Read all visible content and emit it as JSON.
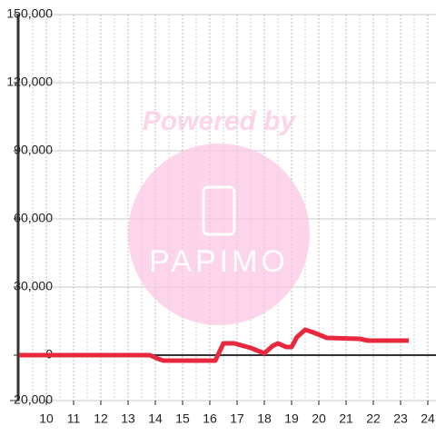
{
  "chart_data": {
    "type": "line",
    "x": [
      9.0,
      13.8,
      14.1,
      14.3,
      16.2,
      16.5,
      16.9,
      17.5,
      18.0,
      18.3,
      18.5,
      18.8,
      19.0,
      19.2,
      19.5,
      19.8,
      20.3,
      21.5,
      21.8,
      23.3
    ],
    "series": [
      {
        "color": "#e8283c",
        "values": [
          0,
          0,
          -1600,
          -2400,
          -2400,
          5200,
          5200,
          3200,
          800,
          4000,
          5200,
          3600,
          3600,
          8000,
          11200,
          10000,
          7600,
          7200,
          6400,
          6400
        ]
      }
    ],
    "xlim": [
      9,
      24.3
    ],
    "xticks": [
      10,
      11,
      12,
      13,
      14,
      15,
      16,
      17,
      18,
      19,
      20,
      21,
      22,
      23,
      24
    ],
    "ylim": [
      -20000,
      150000
    ],
    "yticks": [
      {
        "value": -20000,
        "label": "-20,000"
      },
      0,
      {
        "value": 30000,
        "label": "30,000"
      },
      {
        "value": 60000,
        "label": "60,000"
      },
      {
        "value": 90000,
        "label": "90,000"
      },
      {
        "value": 120000,
        "label": "120,000"
      },
      {
        "value": 150000,
        "label": "150,000"
      }
    ],
    "grid": true,
    "watermark": {
      "text": "Powered by",
      "logo": "PAPIMO"
    }
  }
}
